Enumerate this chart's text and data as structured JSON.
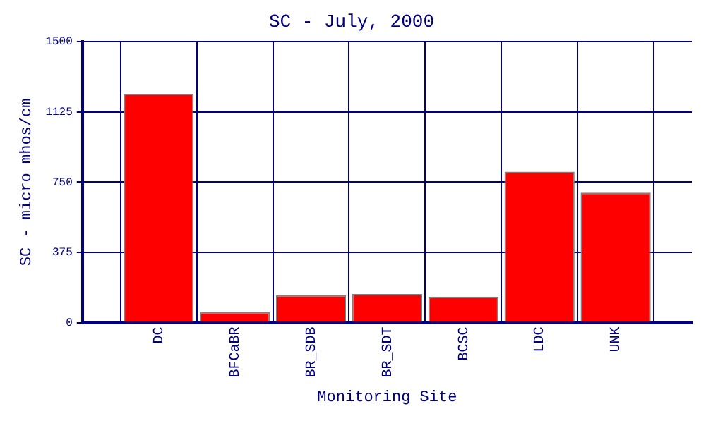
{
  "chart_data": {
    "type": "bar",
    "title": "SC - July, 2000",
    "xlabel": "Monitoring Site",
    "ylabel": "SC - micro mhos/cm",
    "categories": [
      "DC",
      "BFCaBR",
      "BR_SDB",
      "BR_SDT",
      "BCSC",
      "LDC",
      "UNK"
    ],
    "values": [
      1222,
      56,
      146,
      153,
      139,
      806,
      694
    ],
    "color": "#ff0000",
    "ylim": [
      0,
      1500
    ],
    "yticks": [
      0,
      375,
      750,
      1125,
      1500
    ],
    "grid": true,
    "legend": false
  }
}
